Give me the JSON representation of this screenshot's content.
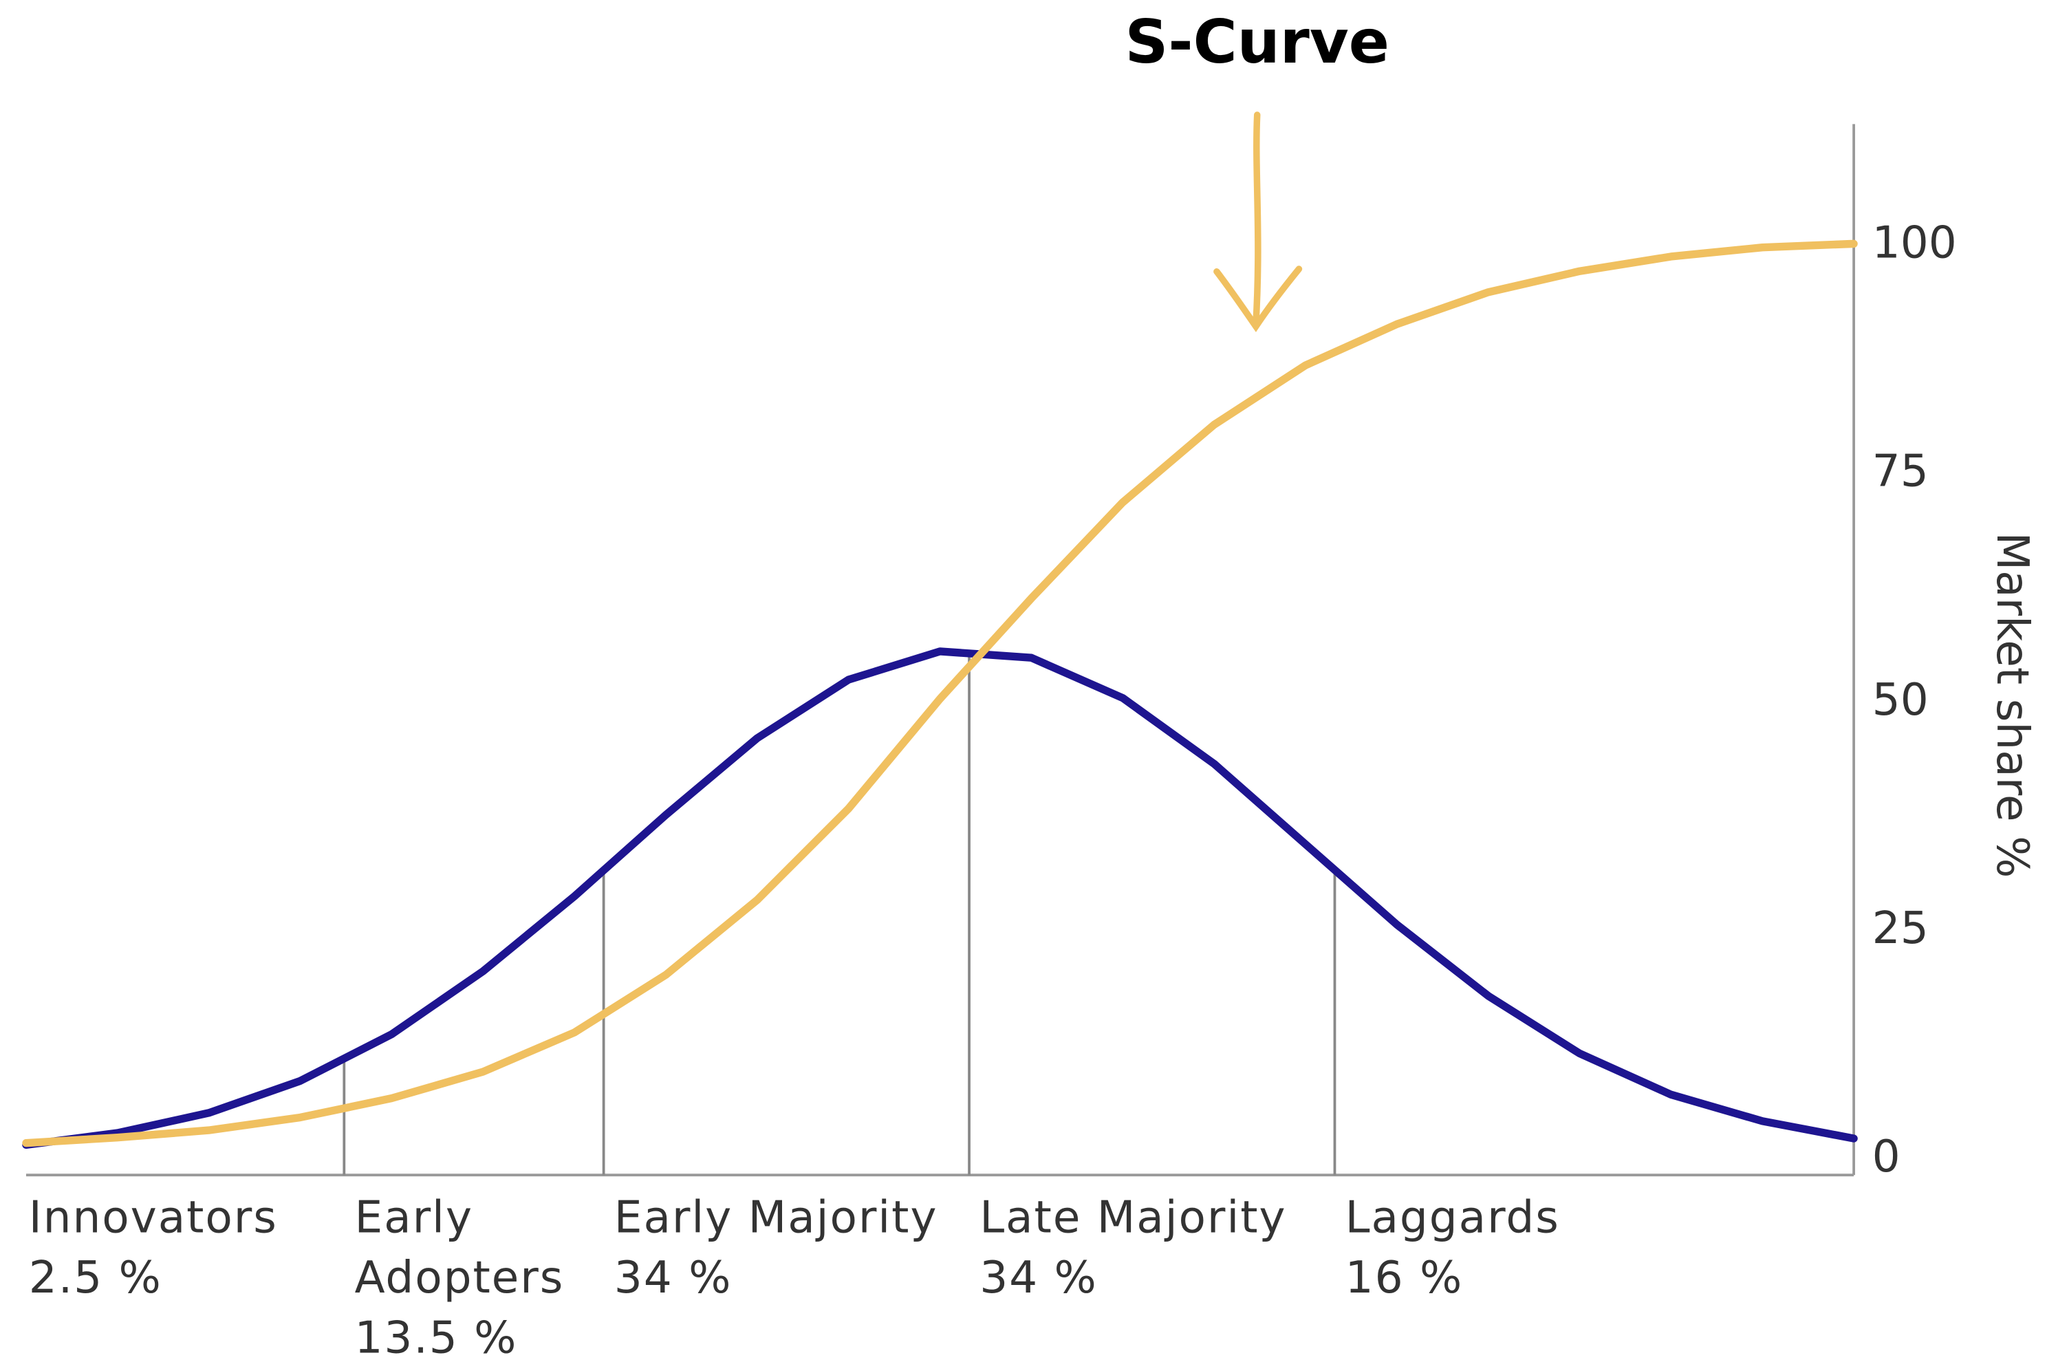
{
  "chart_data": {
    "type": "line",
    "annotation": "S-Curve",
    "ylabel": "Market share %",
    "xlim": [
      0,
      100
    ],
    "ylim": [
      -2.1,
      112.9
    ],
    "yticks": [
      0,
      25,
      50,
      75,
      100
    ],
    "grid": false,
    "series": [
      {
        "color": "#1e1590",
        "x": [
          0,
          5,
          10,
          15,
          20,
          25,
          30,
          35,
          40,
          45,
          50,
          55,
          60,
          65,
          70,
          75,
          80,
          85,
          90,
          95,
          100
        ],
        "values": [
          1.2,
          2.5,
          4.7,
          8.2,
          13.3,
          20.2,
          28.4,
          37.3,
          45.7,
          52.1,
          55.2,
          54.5,
          50.1,
          42.9,
          34.1,
          25.3,
          17.5,
          11.2,
          6.7,
          3.8,
          1.9
        ]
      },
      {
        "color": "#f0c060",
        "x": [
          0,
          5,
          10,
          15,
          20,
          25,
          30,
          35,
          40,
          45,
          50,
          55,
          60,
          65,
          70,
          75,
          80,
          85,
          90,
          95,
          100
        ],
        "values": [
          1.4,
          2.0,
          2.8,
          4.2,
          6.3,
          9.2,
          13.5,
          19.8,
          28,
          38,
          50,
          61,
          71.5,
          80,
          86.5,
          91,
          94.5,
          96.8,
          98.4,
          99.4,
          99.8
        ]
      }
    ],
    "dividers": [
      17.4,
      31.6,
      51.6,
      71.6
    ],
    "categories": [
      "Innovators",
      "Early Adopters",
      "Early Majority",
      "Late Majority",
      "Laggards"
    ],
    "values": [
      2.5,
      13.5,
      34,
      34,
      16
    ],
    "value_labels": [
      "2.5 %",
      "13.5 %",
      "34 %",
      "34 %",
      "16 %"
    ]
  }
}
